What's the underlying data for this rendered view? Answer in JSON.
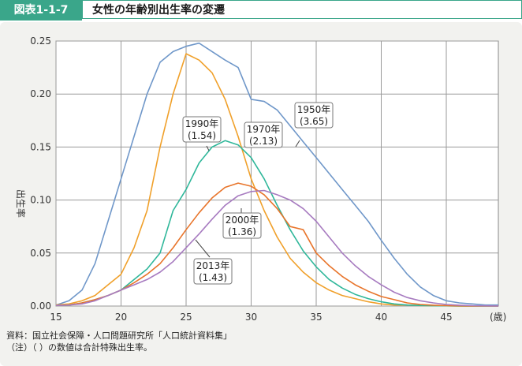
{
  "header": {
    "label": "図表1-1-7",
    "title": "女性の年齢別出生率の変遷"
  },
  "notes": {
    "source": "資料：国立社会保障・人口問題研究所「人口統計資料集」",
    "note": "（注）（ ）の数値は合計特殊出生率。"
  },
  "chart_data": {
    "type": "line",
    "title": "女性の年齢別出生率の変遷",
    "xlabel": "(歳)",
    "ylabel": "出生率",
    "xlim": [
      15,
      49
    ],
    "ylim": [
      0,
      0.25
    ],
    "xticks": [
      "15",
      "20",
      "25",
      "30",
      "35",
      "40",
      "45"
    ],
    "yticks": [
      "0.00",
      "0.05",
      "0.10",
      "0.15",
      "0.20",
      "0.25"
    ],
    "grid": true,
    "x": [
      15,
      16,
      17,
      18,
      19,
      20,
      21,
      22,
      23,
      24,
      25,
      26,
      27,
      28,
      29,
      30,
      31,
      32,
      33,
      34,
      35,
      36,
      37,
      38,
      39,
      40,
      41,
      42,
      43,
      44,
      45,
      46,
      47,
      48,
      49
    ],
    "series": [
      {
        "name": "1950年 (3.65)",
        "label_line1": "1950年",
        "label_line2": "(3.65)",
        "color": "#6f97c9",
        "values": [
          0.001,
          0.005,
          0.015,
          0.04,
          0.08,
          0.12,
          0.16,
          0.2,
          0.23,
          0.24,
          0.245,
          0.248,
          0.24,
          0.232,
          0.225,
          0.195,
          0.193,
          0.185,
          0.17,
          0.155,
          0.14,
          0.125,
          0.11,
          0.095,
          0.08,
          0.062,
          0.045,
          0.03,
          0.018,
          0.01,
          0.005,
          0.003,
          0.002,
          0.001,
          0.001
        ]
      },
      {
        "name": "1970年 (2.13)",
        "label_line1": "1970年",
        "label_line2": "(2.13)",
        "color": "#f0a02a",
        "values": [
          0.001,
          0.002,
          0.005,
          0.01,
          0.02,
          0.03,
          0.055,
          0.09,
          0.15,
          0.2,
          0.238,
          0.232,
          0.22,
          0.195,
          0.16,
          0.12,
          0.09,
          0.065,
          0.045,
          0.032,
          0.022,
          0.015,
          0.01,
          0.007,
          0.004,
          0.002,
          0.001,
          0.001,
          0.0005,
          0.0003,
          0.0002,
          0.0001,
          0.0001,
          0.0,
          0.0
        ]
      },
      {
        "name": "1990年 (1.54)",
        "label_line1": "1990年",
        "label_line2": "(1.54)",
        "color": "#2fb79a",
        "values": [
          0.0005,
          0.001,
          0.003,
          0.006,
          0.01,
          0.015,
          0.025,
          0.035,
          0.05,
          0.09,
          0.11,
          0.135,
          0.15,
          0.156,
          0.152,
          0.14,
          0.12,
          0.095,
          0.072,
          0.052,
          0.037,
          0.025,
          0.017,
          0.011,
          0.007,
          0.004,
          0.002,
          0.001,
          0.0005,
          0.0003,
          0.0002,
          0.0001,
          0.0,
          0.0,
          0.0
        ]
      },
      {
        "name": "2000年 (1.36)",
        "label_line1": "2000年",
        "label_line2": "(1.36)",
        "color": "#e8742a",
        "values": [
          0.0005,
          0.001,
          0.003,
          0.006,
          0.01,
          0.015,
          0.022,
          0.03,
          0.04,
          0.055,
          0.072,
          0.088,
          0.102,
          0.112,
          0.116,
          0.113,
          0.105,
          0.092,
          0.075,
          0.072,
          0.05,
          0.038,
          0.028,
          0.02,
          0.014,
          0.009,
          0.006,
          0.003,
          0.0015,
          0.0008,
          0.0004,
          0.0002,
          0.0001,
          0.0,
          0.0
        ]
      },
      {
        "name": "2013年 (1.43)",
        "label_line1": "2013年",
        "label_line2": "(1.43)",
        "color": "#a77bc0",
        "values": [
          0.0005,
          0.001,
          0.002,
          0.005,
          0.01,
          0.015,
          0.02,
          0.025,
          0.032,
          0.042,
          0.055,
          0.068,
          0.082,
          0.095,
          0.104,
          0.108,
          0.109,
          0.105,
          0.1,
          0.092,
          0.08,
          0.065,
          0.05,
          0.038,
          0.028,
          0.02,
          0.013,
          0.008,
          0.005,
          0.003,
          0.0015,
          0.0008,
          0.0004,
          0.0002,
          0.0001
        ]
      }
    ]
  }
}
